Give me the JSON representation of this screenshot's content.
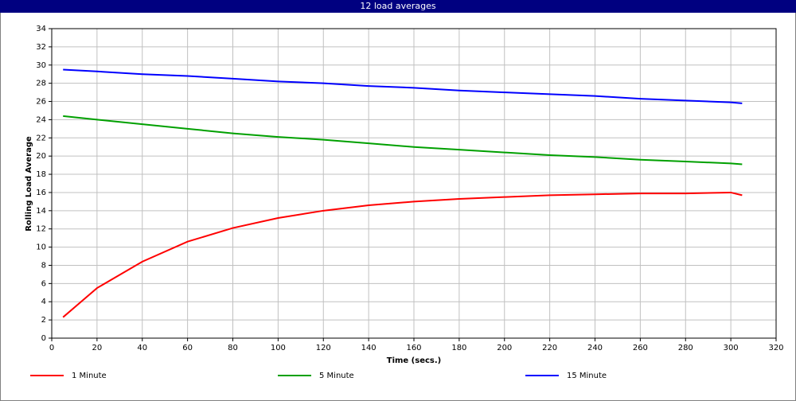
{
  "chart_data": {
    "type": "line",
    "title": "12 load averages",
    "x_label": "Time (secs.)",
    "y_label": "Rolling Load Average",
    "x": [
      5,
      20,
      40,
      60,
      80,
      100,
      120,
      140,
      160,
      180,
      200,
      220,
      240,
      260,
      280,
      300,
      305
    ],
    "series": [
      {
        "name": "1 Minute",
        "color": "#ff0000",
        "values": [
          2.3,
          5.5,
          8.4,
          10.6,
          12.1,
          13.2,
          14.0,
          14.6,
          15.0,
          15.3,
          15.5,
          15.7,
          15.8,
          15.9,
          15.9,
          16.0,
          15.7
        ]
      },
      {
        "name": "5 Minute",
        "color": "#00a000",
        "values": [
          24.4,
          24.0,
          23.5,
          23.0,
          22.5,
          22.1,
          21.8,
          21.4,
          21.0,
          20.7,
          20.4,
          20.1,
          19.9,
          19.6,
          19.4,
          19.2,
          19.1
        ]
      },
      {
        "name": "15 Minute",
        "color": "#0000ff",
        "values": [
          29.5,
          29.3,
          29.0,
          28.8,
          28.5,
          28.2,
          28.0,
          27.7,
          27.5,
          27.2,
          27.0,
          26.8,
          26.6,
          26.3,
          26.1,
          25.9,
          25.8
        ]
      }
    ],
    "xlim": [
      0,
      320
    ],
    "xticks": [
      0,
      20,
      40,
      60,
      80,
      100,
      120,
      140,
      160,
      180,
      200,
      220,
      240,
      260,
      280,
      300,
      320
    ],
    "ylim": [
      0,
      34
    ],
    "yticks": [
      0,
      2,
      4,
      6,
      8,
      10,
      12,
      14,
      16,
      18,
      20,
      22,
      24,
      26,
      28,
      30,
      32,
      34
    ],
    "grid": true,
    "legend": "bottom"
  }
}
